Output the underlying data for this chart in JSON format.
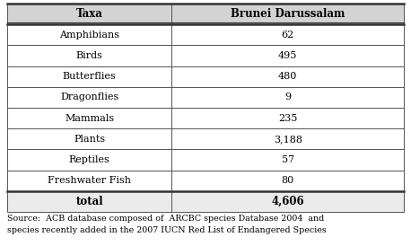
{
  "headers": [
    "Taxa",
    "Brunei Darussalam"
  ],
  "rows": [
    [
      "Amphibians",
      "62"
    ],
    [
      "Birds",
      "495"
    ],
    [
      "Butterflies",
      "480"
    ],
    [
      "Dragonflies",
      "9"
    ],
    [
      "Mammals",
      "235"
    ],
    [
      "Plants",
      "3,188"
    ],
    [
      "Reptiles",
      "57"
    ],
    [
      "Freshwater Fish",
      "80"
    ]
  ],
  "total_row": [
    "total",
    "4,606"
  ],
  "source_line1": "Source:  ACB database composed of  ARCBC species Database 2004  and",
  "source_line2": "species recently added in the 2007 IUCN Red List of Endangered Species",
  "header_bg": "#d3d3d3",
  "total_bg": "#ebebeb",
  "row_bg": "#ffffff",
  "border_color": "#555555",
  "thick_border_color": "#333333",
  "header_fontsize": 8.5,
  "cell_fontsize": 8.0,
  "source_fontsize": 6.8,
  "col_split": 0.415,
  "fig_width": 4.58,
  "fig_height": 2.74,
  "dpi": 100
}
